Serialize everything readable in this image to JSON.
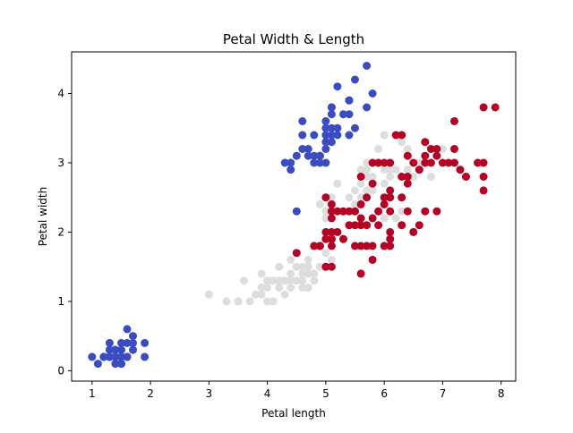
{
  "chart_data": {
    "type": "scatter",
    "title": "Petal Width & Length",
    "xlabel": "Petal length",
    "ylabel": "Petal width",
    "xlim": [
      0.65,
      8.25
    ],
    "ylim": [
      -0.15,
      4.6
    ],
    "xticks": [
      1,
      2,
      3,
      4,
      5,
      6,
      7,
      8
    ],
    "yticks": [
      0,
      1,
      2,
      3,
      4
    ],
    "grid": false,
    "legend": "none",
    "series": [
      {
        "color": "#3b4cc0",
        "points": [
          [
            1.0,
            0.2
          ],
          [
            1.1,
            0.1
          ],
          [
            1.2,
            0.2
          ],
          [
            1.2,
            0.2
          ],
          [
            1.3,
            0.2
          ],
          [
            1.3,
            0.4
          ],
          [
            1.3,
            0.3
          ],
          [
            1.3,
            0.2
          ],
          [
            1.3,
            0.2
          ],
          [
            1.4,
            0.2
          ],
          [
            1.4,
            0.3
          ],
          [
            1.4,
            0.1
          ],
          [
            1.4,
            0.2
          ],
          [
            1.4,
            0.2
          ],
          [
            1.4,
            0.2
          ],
          [
            1.4,
            0.3
          ],
          [
            1.4,
            0.2
          ],
          [
            1.5,
            0.2
          ],
          [
            1.5,
            0.1
          ],
          [
            1.5,
            0.2
          ],
          [
            1.5,
            0.4
          ],
          [
            1.5,
            0.2
          ],
          [
            1.5,
            0.1
          ],
          [
            1.5,
            0.3
          ],
          [
            1.5,
            0.2
          ],
          [
            1.6,
            0.2
          ],
          [
            1.6,
            0.4
          ],
          [
            1.6,
            0.2
          ],
          [
            1.6,
            0.6
          ],
          [
            1.6,
            0.2
          ],
          [
            1.7,
            0.4
          ],
          [
            1.7,
            0.3
          ],
          [
            1.7,
            0.5
          ],
          [
            1.9,
            0.2
          ],
          [
            1.9,
            0.4
          ],
          [
            4.4,
            3.0
          ],
          [
            4.5,
            2.3
          ],
          [
            4.5,
            3.1
          ],
          [
            4.6,
            3.2
          ],
          [
            4.6,
            3.4
          ],
          [
            4.7,
            3.2
          ],
          [
            4.7,
            3.1
          ],
          [
            4.8,
            3.0
          ],
          [
            4.8,
            3.4
          ],
          [
            4.8,
            3.1
          ],
          [
            4.9,
            3.0
          ],
          [
            4.9,
            3.1
          ],
          [
            4.9,
            3.1
          ],
          [
            5.0,
            3.6
          ],
          [
            5.0,
            3.4
          ],
          [
            5.0,
            3.0
          ],
          [
            5.0,
            3.3
          ],
          [
            5.0,
            3.5
          ],
          [
            5.1,
            3.5
          ],
          [
            5.1,
            3.4
          ],
          [
            5.1,
            3.8
          ],
          [
            5.1,
            3.3
          ],
          [
            5.1,
            3.7
          ],
          [
            5.1,
            3.8
          ],
          [
            5.2,
            3.5
          ],
          [
            5.2,
            3.4
          ],
          [
            5.2,
            4.1
          ],
          [
            5.4,
            3.9
          ],
          [
            5.4,
            3.7
          ],
          [
            5.4,
            3.4
          ],
          [
            5.4,
            3.9
          ],
          [
            5.5,
            3.5
          ],
          [
            5.5,
            4.2
          ],
          [
            5.7,
            4.4
          ],
          [
            5.7,
            3.8
          ],
          [
            5.8,
            4.0
          ],
          [
            4.3,
            3.0
          ],
          [
            5.3,
            3.7
          ],
          [
            4.4,
            2.9
          ],
          [
            5.0,
            3.2
          ],
          [
            4.6,
            3.6
          ]
        ]
      },
      {
        "color": "#dddddd",
        "points": [
          [
            3.0,
            1.1
          ],
          [
            3.3,
            1.0
          ],
          [
            3.5,
            1.0
          ],
          [
            3.5,
            1.0
          ],
          [
            3.6,
            1.3
          ],
          [
            3.7,
            1.0
          ],
          [
            3.8,
            1.1
          ],
          [
            3.9,
            1.4
          ],
          [
            3.9,
            1.1
          ],
          [
            3.9,
            1.2
          ],
          [
            4.0,
            1.3
          ],
          [
            4.0,
            1.0
          ],
          [
            4.0,
            1.3
          ],
          [
            4.0,
            1.2
          ],
          [
            4.1,
            1.3
          ],
          [
            4.1,
            1.0
          ],
          [
            4.2,
            1.3
          ],
          [
            4.2,
            1.5
          ],
          [
            4.2,
            1.2
          ],
          [
            4.3,
            1.3
          ],
          [
            4.3,
            1.3
          ],
          [
            4.4,
            1.4
          ],
          [
            4.4,
            1.3
          ],
          [
            4.4,
            1.2
          ],
          [
            4.5,
            1.5
          ],
          [
            4.5,
            1.3
          ],
          [
            4.5,
            1.5
          ],
          [
            4.5,
            1.5
          ],
          [
            4.6,
            1.3
          ],
          [
            4.6,
            1.5
          ],
          [
            4.6,
            1.4
          ],
          [
            4.7,
            1.4
          ],
          [
            4.7,
            1.2
          ],
          [
            4.7,
            1.5
          ],
          [
            4.7,
            1.6
          ],
          [
            4.8,
            1.8
          ],
          [
            4.8,
            1.4
          ],
          [
            4.9,
            1.5
          ],
          [
            4.9,
            1.5
          ],
          [
            5.0,
            1.7
          ],
          [
            5.1,
            1.6
          ],
          [
            4.4,
            1.6
          ],
          [
            4.8,
            1.3
          ],
          [
            4.6,
            1.2
          ],
          [
            4.3,
            1.1
          ],
          [
            5.0,
            1.5
          ],
          [
            4.9,
            2.4
          ],
          [
            5.0,
            2.3
          ],
          [
            5.1,
            2.5
          ],
          [
            5.0,
            2.2
          ],
          [
            5.1,
            2.3
          ],
          [
            5.2,
            2.7
          ],
          [
            5.4,
            2.5
          ],
          [
            5.5,
            2.6
          ],
          [
            5.5,
            2.4
          ],
          [
            5.6,
            2.7
          ],
          [
            5.6,
            2.9
          ],
          [
            5.6,
            2.5
          ],
          [
            5.7,
            2.8
          ],
          [
            5.7,
            3.0
          ],
          [
            5.7,
            2.6
          ],
          [
            5.8,
            2.7
          ],
          [
            5.8,
            2.6
          ],
          [
            5.9,
            3.0
          ],
          [
            5.9,
            3.2
          ],
          [
            6.0,
            2.7
          ],
          [
            6.0,
            2.2
          ],
          [
            6.0,
            2.9
          ],
          [
            6.0,
            3.4
          ],
          [
            6.1,
            2.8
          ],
          [
            6.1,
            2.9
          ],
          [
            6.1,
            3.0
          ],
          [
            6.2,
            2.2
          ],
          [
            6.2,
            2.9
          ],
          [
            6.3,
            2.3
          ],
          [
            6.3,
            2.5
          ],
          [
            6.4,
            2.9
          ],
          [
            6.4,
            3.2
          ],
          [
            6.6,
            2.9
          ],
          [
            6.6,
            3.0
          ],
          [
            6.7,
            3.1
          ],
          [
            6.8,
            2.8
          ],
          [
            6.9,
            3.1
          ],
          [
            7.0,
            3.2
          ],
          [
            6.1,
            2.6
          ],
          [
            5.7,
            2.9
          ],
          [
            6.5,
            2.8
          ],
          [
            5.8,
            2.8
          ],
          [
            5.5,
            2.3
          ],
          [
            6.3,
            3.3
          ],
          [
            6.7,
            3.0
          ],
          [
            6.2,
            3.4
          ],
          [
            5.6,
            2.9
          ]
        ]
      },
      {
        "color": "#b40426",
        "points": [
          [
            4.5,
            1.7
          ],
          [
            4.8,
            1.8
          ],
          [
            4.9,
            1.8
          ],
          [
            4.9,
            1.8
          ],
          [
            5.0,
            1.5
          ],
          [
            5.0,
            2.0
          ],
          [
            5.0,
            1.9
          ],
          [
            5.1,
            1.9
          ],
          [
            5.1,
            2.0
          ],
          [
            5.1,
            1.8
          ],
          [
            5.1,
            1.5
          ],
          [
            5.1,
            2.3
          ],
          [
            5.1,
            2.4
          ],
          [
            5.1,
            1.9
          ],
          [
            5.2,
            2.0
          ],
          [
            5.2,
            2.3
          ],
          [
            5.3,
            1.9
          ],
          [
            5.3,
            2.3
          ],
          [
            5.4,
            2.1
          ],
          [
            5.4,
            2.3
          ],
          [
            5.5,
            2.1
          ],
          [
            5.5,
            1.8
          ],
          [
            5.5,
            2.3
          ],
          [
            5.6,
            1.4
          ],
          [
            5.6,
            1.8
          ],
          [
            5.6,
            2.1
          ],
          [
            5.6,
            2.4
          ],
          [
            5.6,
            2.2
          ],
          [
            5.7,
            1.8
          ],
          [
            5.7,
            2.1
          ],
          [
            5.7,
            2.5
          ],
          [
            5.8,
            1.6
          ],
          [
            5.8,
            2.2
          ],
          [
            5.8,
            1.8
          ],
          [
            5.9,
            2.1
          ],
          [
            5.9,
            2.3
          ],
          [
            6.0,
            2.5
          ],
          [
            6.0,
            1.8
          ],
          [
            6.0,
            2.4
          ],
          [
            6.1,
            2.0
          ],
          [
            6.1,
            2.3
          ],
          [
            6.1,
            1.9
          ],
          [
            6.1,
            2.5
          ],
          [
            6.3,
            2.1
          ],
          [
            6.4,
            2.3
          ],
          [
            6.6,
            2.1
          ],
          [
            6.7,
            2.3
          ],
          [
            6.9,
            2.3
          ],
          [
            5.0,
            2.5
          ],
          [
            5.1,
            2.2
          ],
          [
            5.6,
            2.8
          ],
          [
            5.8,
            3.0
          ],
          [
            5.9,
            3.0
          ],
          [
            6.0,
            3.0
          ],
          [
            6.1,
            3.0
          ],
          [
            6.2,
            3.4
          ],
          [
            6.3,
            3.4
          ],
          [
            6.3,
            2.8
          ],
          [
            6.4,
            2.7
          ],
          [
            6.4,
            3.1
          ],
          [
            6.5,
            3.0
          ],
          [
            6.6,
            2.9
          ],
          [
            6.7,
            3.3
          ],
          [
            6.7,
            3.1
          ],
          [
            6.8,
            3.2
          ],
          [
            6.9,
            3.2
          ],
          [
            7.0,
            3.0
          ],
          [
            7.1,
            3.0
          ],
          [
            7.2,
            3.2
          ],
          [
            7.2,
            3.6
          ],
          [
            7.3,
            2.9
          ],
          [
            7.4,
            2.8
          ],
          [
            7.6,
            3.0
          ],
          [
            7.7,
            3.8
          ],
          [
            7.7,
            2.6
          ],
          [
            7.7,
            2.8
          ],
          [
            7.7,
            3.0
          ],
          [
            7.9,
            3.8
          ],
          [
            6.1,
            2.6
          ],
          [
            5.8,
            2.7
          ],
          [
            6.1,
            1.8
          ],
          [
            6.3,
            2.5
          ],
          [
            6.4,
            2.8
          ],
          [
            6.5,
            2.0
          ],
          [
            6.7,
            3.0
          ],
          [
            6.8,
            3.0
          ],
          [
            6.9,
            3.1
          ],
          [
            7.2,
            3.0
          ]
        ]
      }
    ]
  }
}
